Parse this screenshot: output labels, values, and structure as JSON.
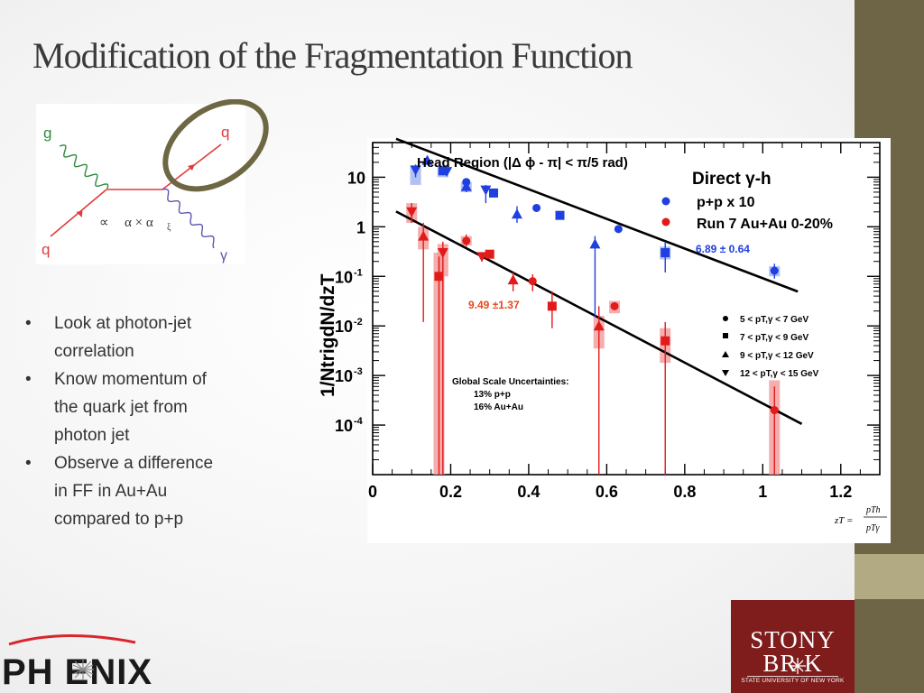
{
  "slide": {
    "title": "Modification of the Fragmentation Function",
    "bullets": [
      [
        "Look at photon-jet",
        "correlation"
      ],
      [
        "Know momentum of",
        "the quark jet from",
        "photon jet"
      ],
      [
        "Observe a difference",
        "in FF in Au+Au",
        "compared to p+p"
      ]
    ],
    "bullet_symbol": "•",
    "colors": {
      "band": "#6e6546",
      "band_light": "#b1aa83",
      "title": "#3a3a3a"
    }
  },
  "feynman": {
    "labels": {
      "g": "g",
      "q_in": "q",
      "q_out": "q",
      "gamma": "γ",
      "prop": "∝",
      "alpha": "α × α",
      "alpha_sub": "ξ"
    },
    "colors": {
      "gluon": "#2e8b3c",
      "quark": "#e23b3b",
      "photon": "#5b57b0",
      "circle": "#6d6743"
    }
  },
  "chart_data": {
    "type": "scatter",
    "title": "Head Region (|Δ ϕ - π| < π/5 rad)",
    "header": "Direct γ-h",
    "xlabel": "zT",
    "ylabel": "1/NtrigdN/dzT",
    "x_scale": "linear",
    "y_scale": "log",
    "xlim": [
      0,
      1.3
    ],
    "ylim": [
      1e-05,
      50
    ],
    "x_ticks": [
      "0",
      "0.2",
      "0.4",
      "0.6",
      "0.8",
      "1",
      "1.2"
    ],
    "y_ticks": [
      {
        "base": "10",
        "exp": ""
      },
      {
        "base": "1",
        "exp": ""
      },
      {
        "base": "10",
        "exp": "-1"
      },
      {
        "base": "10",
        "exp": "-2"
      },
      {
        "base": "10",
        "exp": "-3"
      },
      {
        "base": "10",
        "exp": "-4"
      }
    ],
    "legend": {
      "placement": "top-right",
      "series": [
        {
          "name": "p+p x 10",
          "color": "#1f3fe0"
        },
        {
          "name": "Run 7 Au+Au 0-20%",
          "color": "#e21a1a"
        }
      ],
      "markers": [
        {
          "marker": "circle",
          "text": "5 < pT,γ < 7 GeV"
        },
        {
          "marker": "square",
          "text": "7 < pT,γ < 9 GeV"
        },
        {
          "marker": "triangle-up",
          "text": "9 < pT,γ < 12 GeV"
        },
        {
          "marker": "triangle-down",
          "text": "12 < pT,γ < 15 GeV"
        }
      ]
    },
    "annotations": {
      "pp_slope": "6.89 ± 0.64",
      "auau_slope": "9.49 ±1.37",
      "uncert_title": "Global Scale Uncertainties:",
      "uncert_pp": "13% p+p",
      "uncert_auau": "16% Au+Au",
      "formula_lhs": "zT =",
      "formula_num": "pTh",
      "formula_den": "pTγ"
    },
    "fits": [
      {
        "series": "p+p x 10",
        "slope": -6.89,
        "x_range": [
          0.06,
          1.09
        ],
        "y_at_x0": 90
      },
      {
        "series": "Run 7 Au+Au 0-20%",
        "slope": -9.49,
        "x_range": [
          0.06,
          1.1
        ],
        "y_at_x0": 3.6
      }
    ],
    "series": [
      {
        "name": "p+p x 10",
        "color": "#1f3fe0",
        "sys_color": "#9fb0ef",
        "points": [
          {
            "x": 0.11,
            "y": 14,
            "m": "triangle-down",
            "eh": 18,
            "el": 10,
            "sh": 17,
            "sl": 7
          },
          {
            "x": 0.14,
            "y": 22,
            "m": "triangle-up",
            "eh": 24,
            "el": 20
          },
          {
            "x": 0.18,
            "y": 13.5,
            "m": "square",
            "eh": 16,
            "el": 11,
            "sh": 16,
            "sl": 10
          },
          {
            "x": 0.19,
            "y": 13,
            "m": "triangle-down",
            "eh": 15,
            "el": 11
          },
          {
            "x": 0.24,
            "y": 6.5,
            "m": "triangle-up",
            "eh": 8,
            "el": 5,
            "sh": 8,
            "sl": 5
          },
          {
            "x": 0.24,
            "y": 8,
            "m": "circle"
          },
          {
            "x": 0.29,
            "y": 5.5,
            "m": "triangle-down",
            "eh": 7,
            "el": 3
          },
          {
            "x": 0.31,
            "y": 4.8,
            "m": "square",
            "eh": 5.5,
            "el": 4
          },
          {
            "x": 0.37,
            "y": 1.8,
            "m": "triangle-up",
            "eh": 2.6,
            "el": 1.2
          },
          {
            "x": 0.42,
            "y": 2.4,
            "m": "circle"
          },
          {
            "x": 0.48,
            "y": 1.7,
            "m": "square",
            "eh": 2,
            "el": 1.4
          },
          {
            "x": 0.57,
            "y": 0.45,
            "m": "triangle-up",
            "eh": 0.65,
            "el": 0.015
          },
          {
            "x": 0.63,
            "y": 0.9,
            "m": "circle"
          },
          {
            "x": 0.75,
            "y": 0.3,
            "m": "square",
            "eh": 0.5,
            "el": 0.12,
            "sh": 0.4,
            "sl": 0.22
          },
          {
            "x": 1.03,
            "y": 0.13,
            "m": "circle",
            "eh": 0.18,
            "el": 0.09,
            "sh": 0.16,
            "sl": 0.1
          }
        ]
      },
      {
        "name": "Run 7 Au+Au 0-20%",
        "color": "#e21a1a",
        "sys_color": "#f29a9a",
        "points": [
          {
            "x": 0.1,
            "y": 2.0,
            "m": "triangle-down",
            "eh": 3.0,
            "el": 1.2,
            "sh": 3.0,
            "sl": 1.2
          },
          {
            "x": 0.13,
            "y": 0.65,
            "m": "triangle-up",
            "eh": 1.2,
            "el": 0.012,
            "sh": 1.0,
            "sl": 0.35
          },
          {
            "x": 0.17,
            "y": 0.1,
            "m": "square",
            "eh": 0.25,
            "el": 1e-05,
            "sh": 0.3,
            "sl": 1e-05
          },
          {
            "x": 0.18,
            "y": 0.3,
            "m": "triangle-down",
            "eh": 0.5,
            "el": 1e-05,
            "sh": 0.45,
            "sl": 0.1
          },
          {
            "x": 0.24,
            "y": 0.52,
            "m": "circle",
            "eh": 0.7,
            "el": 0.4,
            "sh": 0.65,
            "sl": 0.42
          },
          {
            "x": 0.28,
            "y": 0.25,
            "m": "triangle-down",
            "eh": 0.3,
            "el": 0.2
          },
          {
            "x": 0.3,
            "y": 0.28,
            "m": "square",
            "eh": 0.32,
            "el": 0.24
          },
          {
            "x": 0.36,
            "y": 0.085,
            "m": "triangle-up",
            "eh": 0.12,
            "el": 0.05
          },
          {
            "x": 0.41,
            "y": 0.08,
            "m": "circle",
            "eh": 0.11,
            "el": 0.05
          },
          {
            "x": 0.46,
            "y": 0.025,
            "m": "square",
            "eh": 0.05,
            "el": 0.009
          },
          {
            "x": 0.62,
            "y": 0.025,
            "m": "circle",
            "sh": 0.032,
            "sl": 0.018
          },
          {
            "x": 0.58,
            "y": 0.01,
            "m": "triangle-up",
            "eh": 0.025,
            "el": 1e-05,
            "sh": 0.016,
            "sl": 0.0035
          },
          {
            "x": 0.75,
            "y": 0.005,
            "m": "square",
            "eh": 0.012,
            "el": 1e-05,
            "sh": 0.009,
            "sl": 0.0018
          },
          {
            "x": 1.03,
            "y": 0.0002,
            "m": "circle",
            "eh": 0.0006,
            "el": 1e-05,
            "sh": 0.0008,
            "sl": 1e-05
          }
        ]
      }
    ]
  },
  "logos": {
    "phenix": "PH ENIX",
    "stony_l1": "STONY",
    "stony_l2": "BR   K",
    "stony_l3": "STATE UNIVERSITY OF NEW YORK"
  }
}
